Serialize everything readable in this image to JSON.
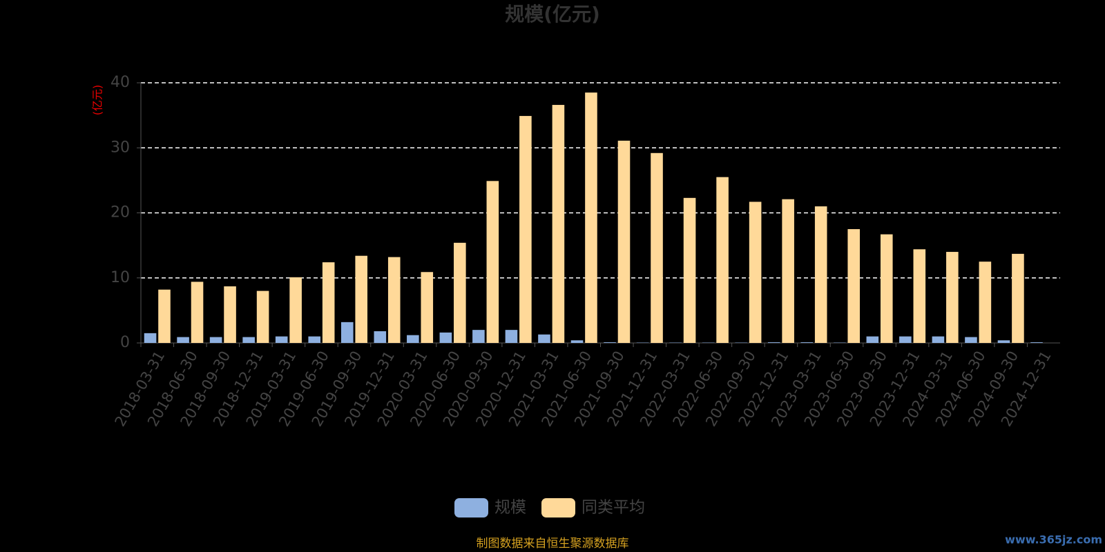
{
  "chart_data": {
    "type": "bar",
    "title": "规模(亿元)",
    "y_label": "(亿元)",
    "categories": [
      "2018-03-31",
      "2018-06-30",
      "2018-09-30",
      "2018-12-31",
      "2019-03-31",
      "2019-06-30",
      "2019-09-30",
      "2019-12-31",
      "2020-03-31",
      "2020-06-30",
      "2020-09-30",
      "2020-12-31",
      "2021-03-31",
      "2021-06-30",
      "2021-09-30",
      "2021-12-31",
      "2022-03-31",
      "2022-06-30",
      "2022-09-30",
      "2022-12-31",
      "2023-03-31",
      "2023-06-30",
      "2023-09-30",
      "2023-12-31",
      "2024-03-31",
      "2024-06-30",
      "2024-09-30",
      "2024-12-31"
    ],
    "series": [
      {
        "name": "规模",
        "color": "#8eb0e0",
        "values": [
          1.5,
          0.9,
          0.9,
          0.9,
          1.0,
          1.0,
          3.2,
          1.8,
          1.2,
          1.6,
          2.0,
          2.0,
          1.3,
          0.4,
          0.1,
          0.05,
          0.05,
          0.05,
          0.05,
          0.1,
          0.1,
          0.05,
          1.0,
          1.0,
          1.0,
          0.9,
          0.4,
          0.1
        ]
      },
      {
        "name": "同类平均",
        "color": "#ffd999",
        "values": [
          8.2,
          9.4,
          8.7,
          8.0,
          10.1,
          12.4,
          13.4,
          13.2,
          10.9,
          15.4,
          24.9,
          34.9,
          36.6,
          38.5,
          31.1,
          29.2,
          22.3,
          25.5,
          21.7,
          22.1,
          21.0,
          17.5,
          16.7,
          14.4,
          14.0,
          12.5,
          13.7,
          null
        ]
      }
    ],
    "ylim": [
      0,
      40
    ],
    "yticks": [
      0,
      10,
      20,
      30,
      40
    ],
    "grid": true,
    "source": "制图数据来自恒生聚源数据库",
    "watermark": "www.365jz.com"
  }
}
